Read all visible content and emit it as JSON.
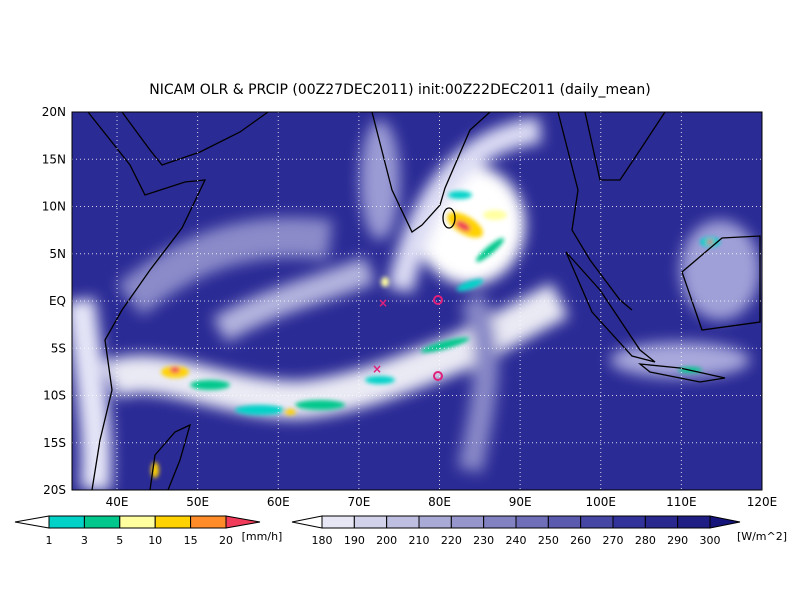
{
  "title": "NICAM OLR & PRCIP (00Z27DEC2011) init:00Z22DEC2011 (daily_mean)",
  "map": {
    "lat_labels": [
      "20N",
      "15N",
      "10N",
      "5N",
      "EQ",
      "5S",
      "10S",
      "15S",
      "20S"
    ],
    "lon_labels": [
      "40E",
      "50E",
      "60E",
      "70E",
      "80E",
      "90E",
      "100E",
      "110E",
      "120E"
    ]
  },
  "legend_precip": {
    "labels": [
      "1",
      "3",
      "5",
      "10",
      "15",
      "20"
    ],
    "unit": "[mm/h]",
    "colors": [
      "#ffffff",
      "#00d2c8",
      "#00c88c",
      "#ffffa0",
      "#ffd200",
      "#ff8c28",
      "#f03c5a"
    ]
  },
  "legend_olr": {
    "labels": [
      "180",
      "190",
      "200",
      "210",
      "220",
      "230",
      "240",
      "250",
      "260",
      "270",
      "280",
      "290",
      "300"
    ],
    "unit": "[W/m^2]",
    "colors": [
      "#ffffff",
      "#e6e6f5",
      "#d2d2eb",
      "#bebee1",
      "#aaaad7",
      "#9696cd",
      "#8282c3",
      "#6e6eb9",
      "#5a5aaf",
      "#4646a5",
      "#32329b",
      "#28288f",
      "#1e1e85",
      "#14147a"
    ]
  }
}
